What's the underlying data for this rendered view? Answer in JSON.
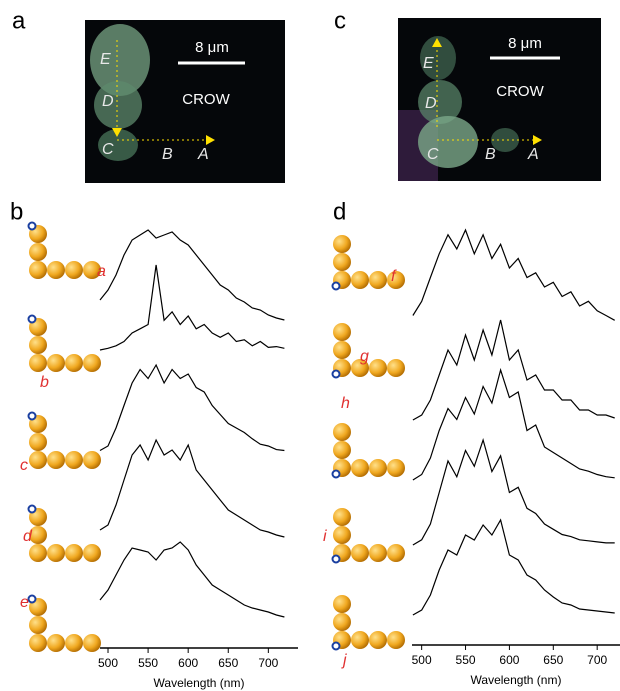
{
  "images": [
    {
      "panel": "a",
      "labels": [
        "E",
        "D",
        "C",
        "B",
        "A"
      ],
      "scale_bar": "8 μm",
      "caption": "CROW"
    },
    {
      "panel": "c",
      "labels": [
        "E",
        "D",
        "C",
        "B",
        "A"
      ],
      "scale_bar": "8 μm",
      "caption": "CROW"
    }
  ],
  "chart_data": [
    {
      "type": "line",
      "panel": "b",
      "xlabel": "Wavelength (nm)",
      "x": [
        490,
        500,
        510,
        520,
        530,
        540,
        550,
        560,
        570,
        580,
        590,
        600,
        610,
        620,
        630,
        640,
        650,
        660,
        670,
        680,
        690,
        700,
        710,
        720
      ],
      "xlim": [
        490,
        737
      ],
      "xticks": [
        500,
        550,
        600,
        650,
        700
      ],
      "series": [
        {
          "name": "a",
          "color": "#000000",
          "values": [
            0.3,
            0.4,
            0.55,
            0.75,
            0.9,
            0.95,
            1.0,
            0.92,
            0.95,
            0.98,
            0.9,
            0.85,
            0.75,
            0.65,
            0.55,
            0.45,
            0.4,
            0.32,
            0.28,
            0.22,
            0.2,
            0.15,
            0.12,
            0.1
          ]
        },
        {
          "name": "b",
          "color": "#000000",
          "values": [
            0.0,
            0.02,
            0.05,
            0.1,
            0.2,
            0.25,
            0.3,
            1.0,
            0.35,
            0.45,
            0.3,
            0.4,
            0.25,
            0.3,
            0.2,
            0.15,
            0.2,
            0.1,
            0.12,
            0.05,
            0.1,
            0.03,
            0.04,
            0.02
          ]
        },
        {
          "name": "c",
          "color": "#000000",
          "values": [
            0.05,
            0.1,
            0.3,
            0.55,
            0.8,
            0.95,
            0.85,
            1.0,
            0.8,
            0.95,
            0.85,
            0.9,
            0.75,
            0.7,
            0.55,
            0.45,
            0.35,
            0.3,
            0.25,
            0.18,
            0.12,
            0.1,
            0.06,
            0.05
          ]
        },
        {
          "name": "d",
          "color": "#000000",
          "values": [
            0.1,
            0.15,
            0.35,
            0.6,
            0.85,
            0.95,
            0.8,
            1.0,
            0.85,
            0.9,
            0.8,
            0.95,
            0.7,
            0.6,
            0.5,
            0.4,
            0.3,
            0.25,
            0.2,
            0.15,
            0.1,
            0.08,
            0.05,
            0.03
          ]
        },
        {
          "name": "e",
          "color": "#000000",
          "values": [
            0.2,
            0.3,
            0.45,
            0.6,
            0.72,
            0.7,
            0.68,
            0.6,
            0.7,
            0.72,
            0.78,
            0.7,
            0.55,
            0.45,
            0.35,
            0.3,
            0.25,
            0.2,
            0.15,
            0.12,
            0.1,
            0.08,
            0.05,
            0.03
          ]
        }
      ]
    },
    {
      "type": "line",
      "panel": "d",
      "xlabel": "Wavelength (nm)",
      "x": [
        490,
        500,
        510,
        520,
        530,
        540,
        550,
        560,
        570,
        580,
        590,
        600,
        610,
        620,
        630,
        640,
        650,
        660,
        670,
        680,
        690,
        700,
        710,
        720
      ],
      "xlim": [
        489,
        726
      ],
      "xticks": [
        500,
        550,
        600,
        650,
        700
      ],
      "series": [
        {
          "name": "f",
          "color": "#000000",
          "values": [
            0.1,
            0.25,
            0.5,
            0.75,
            0.95,
            0.8,
            1.0,
            0.75,
            0.95,
            0.7,
            0.85,
            0.6,
            0.7,
            0.5,
            0.55,
            0.4,
            0.45,
            0.3,
            0.35,
            0.2,
            0.25,
            0.15,
            0.1,
            0.05
          ]
        },
        {
          "name": "g",
          "color": "#000000",
          "values": [
            0.0,
            0.05,
            0.2,
            0.45,
            0.7,
            0.55,
            0.85,
            0.6,
            0.9,
            0.65,
            1.0,
            0.6,
            0.7,
            0.4,
            0.45,
            0.3,
            0.3,
            0.2,
            0.2,
            0.1,
            0.1,
            0.05,
            0.05,
            0.02
          ]
        },
        {
          "name": "h",
          "color": "#000000",
          "values": [
            0.0,
            0.05,
            0.2,
            0.45,
            0.65,
            0.55,
            0.75,
            0.6,
            0.85,
            0.7,
            1.0,
            0.75,
            0.8,
            0.45,
            0.5,
            0.3,
            0.25,
            0.2,
            0.15,
            0.1,
            0.08,
            0.05,
            0.03,
            0.02
          ]
        },
        {
          "name": "i",
          "color": "#000000",
          "values": [
            0.0,
            0.05,
            0.2,
            0.5,
            0.8,
            0.65,
            0.9,
            0.75,
            1.0,
            0.7,
            0.85,
            0.5,
            0.55,
            0.35,
            0.3,
            0.2,
            0.15,
            0.1,
            0.08,
            0.05,
            0.04,
            0.03,
            0.02,
            0.02
          ]
        },
        {
          "name": "j",
          "color": "#000000",
          "values": [
            0.0,
            0.05,
            0.2,
            0.45,
            0.65,
            0.6,
            0.8,
            0.75,
            0.9,
            0.8,
            0.95,
            0.6,
            0.55,
            0.4,
            0.35,
            0.25,
            0.18,
            0.12,
            0.1,
            0.06,
            0.05,
            0.04,
            0.03,
            0.02
          ]
        }
      ]
    }
  ]
}
